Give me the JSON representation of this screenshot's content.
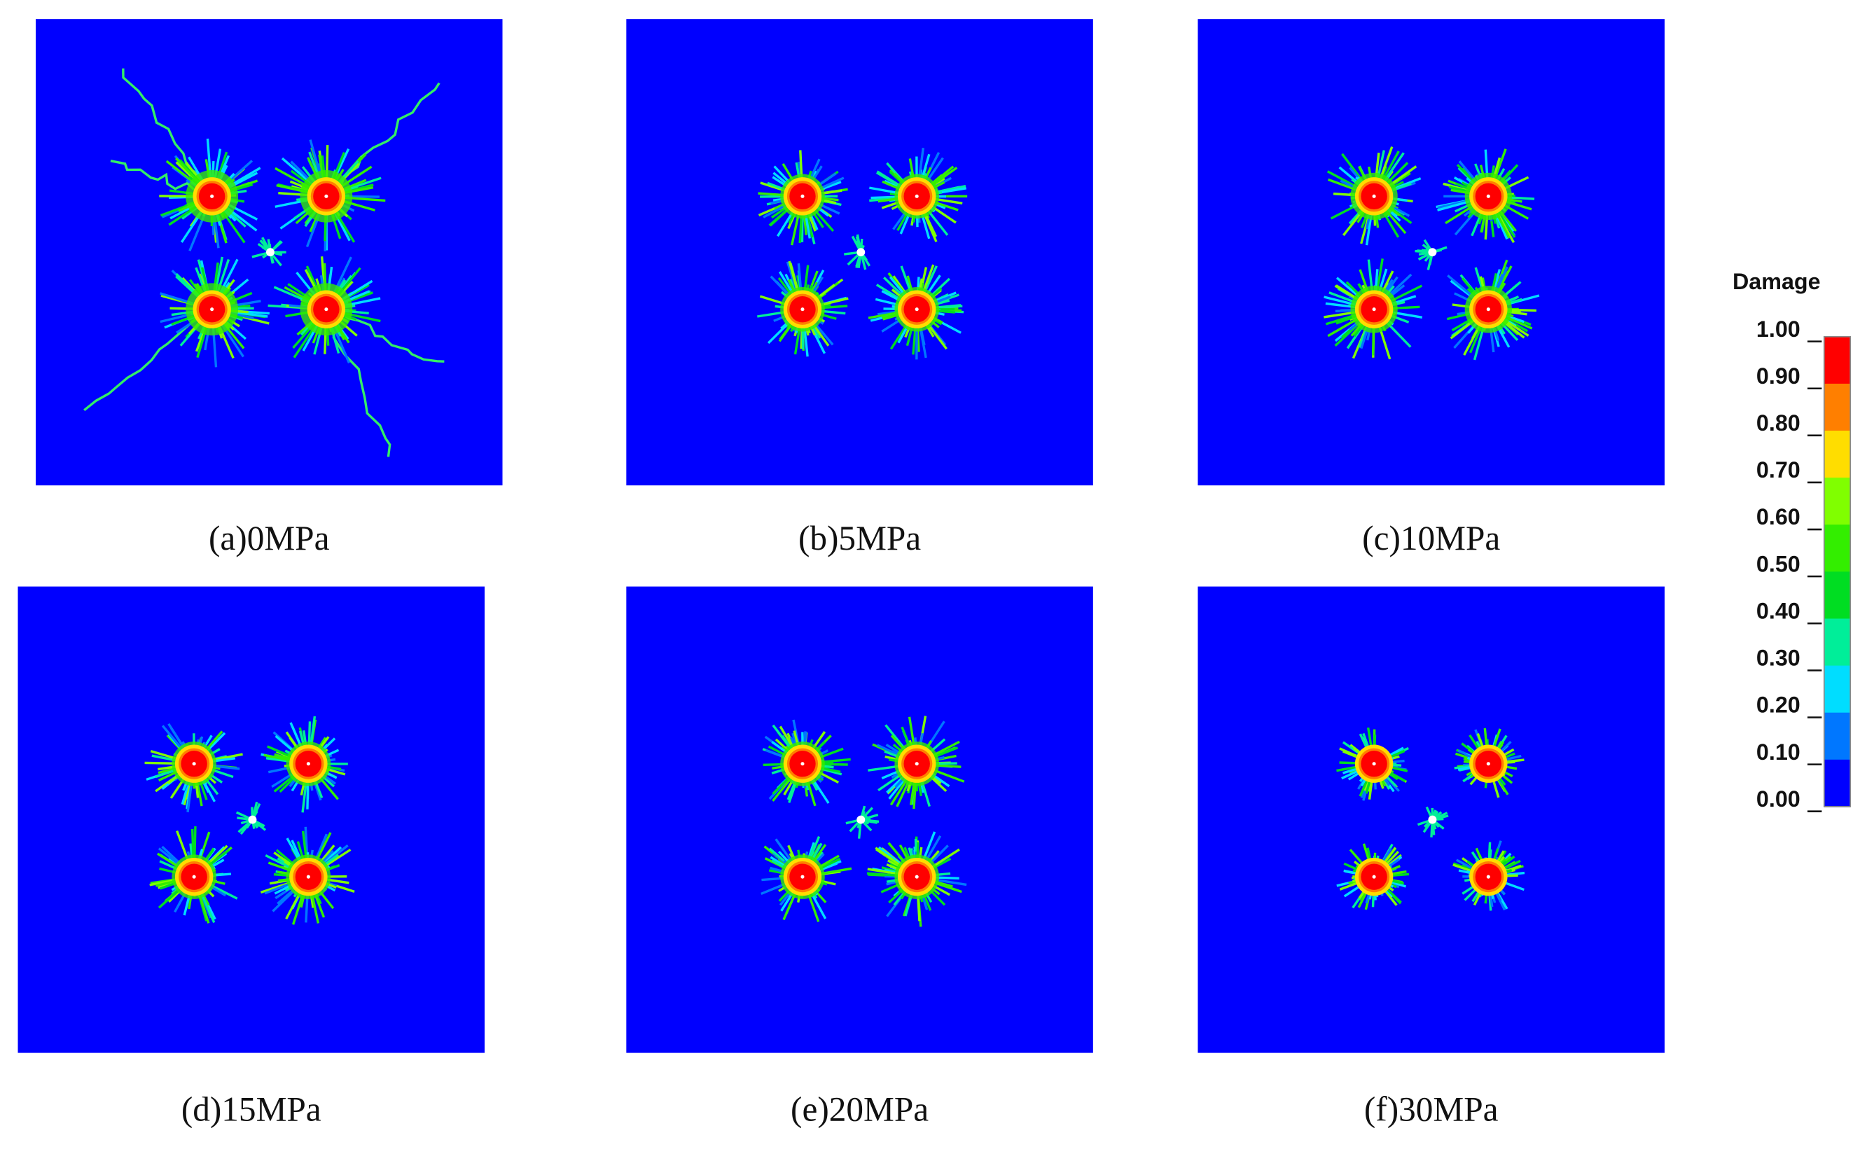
{
  "panels": [
    {
      "label": "(a)0MPa"
    },
    {
      "label": "(b)5MPa"
    },
    {
      "label": "(c)10MPa"
    },
    {
      "label": "(d)15MPa"
    },
    {
      "label": "(e)20MPa"
    },
    {
      "label": "(f)30MPa"
    }
  ],
  "colorbar": {
    "title": "Damage",
    "ticks": [
      "1.00",
      "0.90",
      "0.80",
      "0.70",
      "0.60",
      "0.50",
      "0.40",
      "0.30",
      "0.20",
      "0.10",
      "0.00"
    ]
  }
}
